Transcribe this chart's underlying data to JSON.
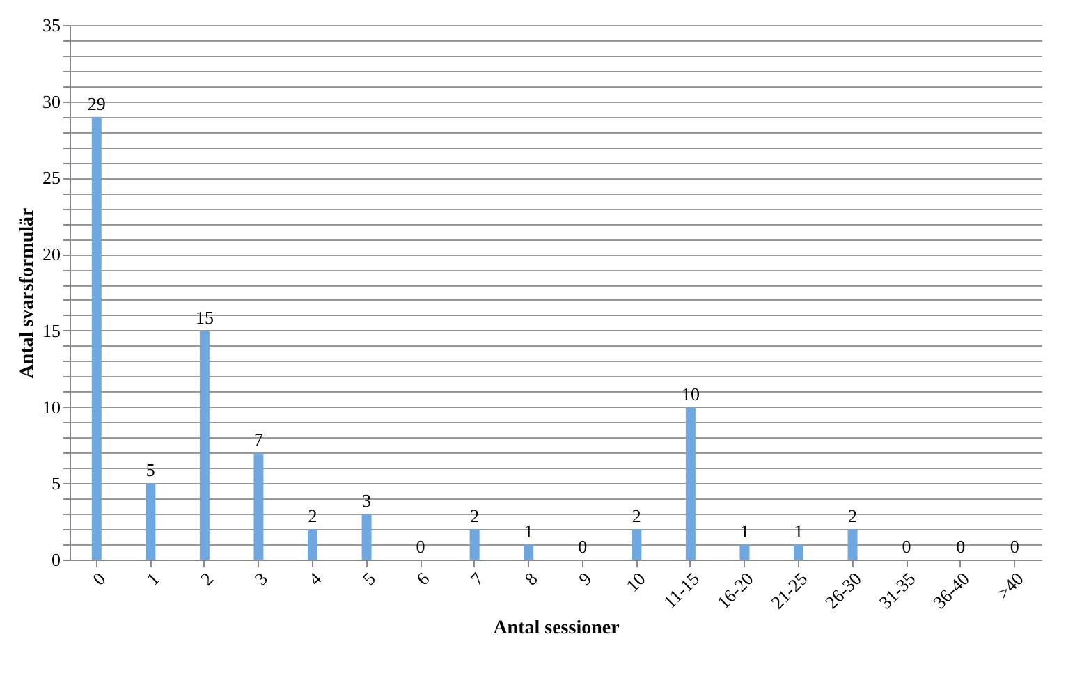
{
  "chart_data": {
    "type": "bar",
    "xlabel": "Antal sessioner",
    "ylabel": "Antal svarsformulär",
    "categories": [
      "0",
      "1",
      "2",
      "3",
      "4",
      "5",
      "6",
      "7",
      "8",
      "9",
      "10",
      "11-15",
      "16-20",
      "21-25",
      "26-30",
      "31-35",
      "36-40",
      ">40"
    ],
    "values": [
      29,
      5,
      15,
      7,
      2,
      3,
      0,
      2,
      1,
      0,
      2,
      10,
      1,
      1,
      2,
      0,
      0,
      0
    ],
    "color": "#6fa8e0",
    "data_labels": true,
    "ylim": [
      0,
      35
    ],
    "yticks": [
      0,
      {
        "value": 1,
        "label": null
      },
      {
        "value": 2,
        "label": null
      },
      {
        "value": 3,
        "label": null
      },
      {
        "value": 4,
        "label": null
      },
      5,
      {
        "value": 6,
        "label": null
      },
      {
        "value": 7,
        "label": null
      },
      {
        "value": 8,
        "label": null
      },
      {
        "value": 9,
        "label": null
      },
      10,
      {
        "value": 11,
        "label": null
      },
      {
        "value": 12,
        "label": null
      },
      {
        "value": 13,
        "label": null
      },
      {
        "value": 14,
        "label": null
      },
      15,
      {
        "value": 16,
        "label": null
      },
      {
        "value": 17,
        "label": null
      },
      {
        "value": 18,
        "label": null
      },
      {
        "value": 19,
        "label": null
      },
      20,
      {
        "value": 21,
        "label": null
      },
      {
        "value": 22,
        "label": null
      },
      {
        "value": 23,
        "label": null
      },
      {
        "value": 24,
        "label": null
      },
      25,
      {
        "value": 26,
        "label": null
      },
      {
        "value": 27,
        "label": null
      },
      {
        "value": 28,
        "label": null
      },
      {
        "value": 29,
        "label": null
      },
      30,
      {
        "value": 31,
        "label": null
      },
      {
        "value": 32,
        "label": null
      },
      {
        "value": 33,
        "label": null
      },
      {
        "value": 34,
        "label": null
      },
      35
    ],
    "grid": "y"
  }
}
